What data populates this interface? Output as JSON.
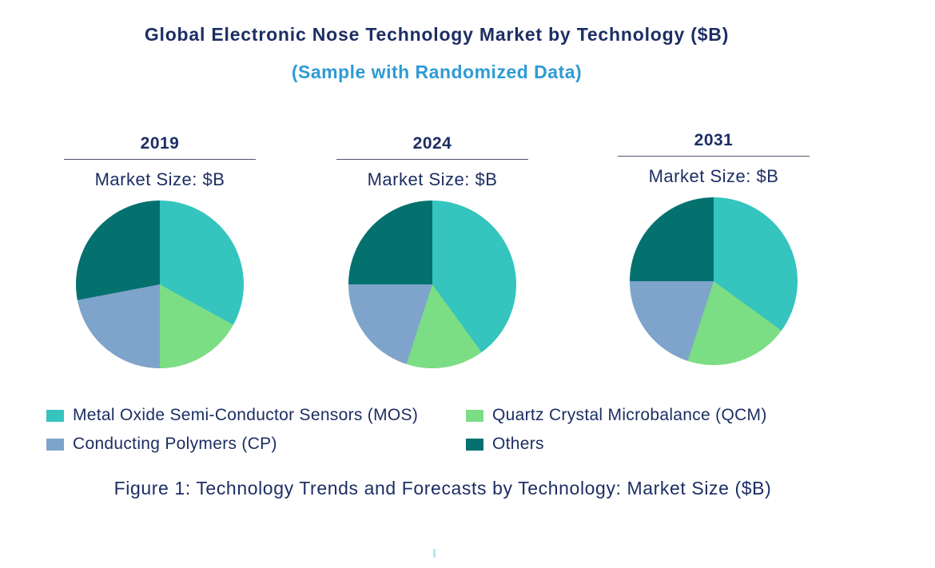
{
  "header": {
    "title": "Global Electronic Nose Technology Market by Technology ($B)",
    "subtitle": "(Sample with Randomized Data)"
  },
  "colors": {
    "title_navy": "#1c2e63",
    "subtitle_blue": "#2e9bd6",
    "rule_gray": "#4d5566",
    "mos_teal": "#35c4be",
    "qcm_green": "#7bdd84",
    "cp_bluegray": "#7ea4cb",
    "others_darkteal": "#04716f",
    "tick_cyan": "#b5e7f7"
  },
  "chart_data": [
    {
      "type": "pie",
      "title": "2019",
      "unit_label": "Market Size: $B",
      "categories": [
        "Metal Oxide Semi-Conductor Sensors (MOS)",
        "Quartz Crystal Microbalance (QCM)",
        "Conducting Polymers (CP)",
        "Others"
      ],
      "values": [
        33,
        17,
        22,
        28
      ],
      "value_unit": "percent share (estimated from slice angles)",
      "colors": [
        "#35c4be",
        "#7bdd84",
        "#7ea4cb",
        "#04716f"
      ],
      "start_angle_deg": 0,
      "direction": "clockwise",
      "legend_position": "bottom"
    },
    {
      "type": "pie",
      "title": "2024",
      "unit_label": "Market Size: $B",
      "categories": [
        "Metal Oxide Semi-Conductor Sensors (MOS)",
        "Quartz Crystal Microbalance (QCM)",
        "Conducting Polymers (CP)",
        "Others"
      ],
      "values": [
        40,
        15,
        20,
        25
      ],
      "value_unit": "percent share (estimated from slice angles)",
      "colors": [
        "#35c4be",
        "#7bdd84",
        "#7ea4cb",
        "#04716f"
      ],
      "start_angle_deg": 0,
      "direction": "clockwise",
      "legend_position": "bottom"
    },
    {
      "type": "pie",
      "title": "2031",
      "unit_label": "Market Size: $B",
      "categories": [
        "Metal Oxide Semi-Conductor Sensors (MOS)",
        "Quartz Crystal Microbalance (QCM)",
        "Conducting Polymers (CP)",
        "Others"
      ],
      "values": [
        35,
        20,
        20,
        25
      ],
      "value_unit": "percent share (estimated from slice angles)",
      "colors": [
        "#35c4be",
        "#7bdd84",
        "#7ea4cb",
        "#04716f"
      ],
      "start_angle_deg": 0,
      "direction": "clockwise",
      "legend_position": "bottom"
    }
  ],
  "legend": {
    "items": [
      {
        "label": "Metal Oxide Semi-Conductor Sensors (MOS)",
        "color": "#35c4be"
      },
      {
        "label": "Quartz Crystal Microbalance (QCM)",
        "color": "#7bdd84"
      },
      {
        "label": "Conducting Polymers (CP)",
        "color": "#7ea4cb"
      },
      {
        "label": "Others",
        "color": "#04716f"
      }
    ]
  },
  "caption": "Figure 1: Technology Trends and Forecasts by Technology: Market Size ($B)"
}
